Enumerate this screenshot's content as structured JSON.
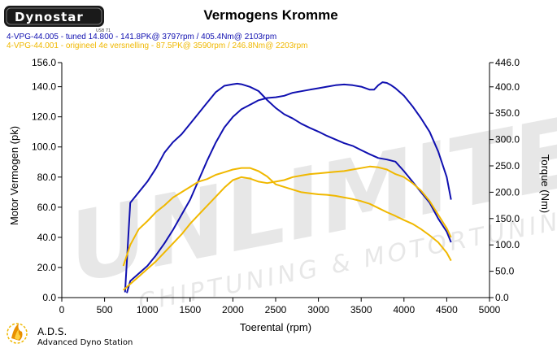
{
  "brand": {
    "logo_text": "Dynostar",
    "logo_subtext": "USB 71",
    "footer_title": "A.D.S.",
    "footer_subtitle": "Advanced Dyno Station",
    "watermark": "UNLIMITED",
    "watermark_sub": "CHIPTUNING & MOTORTUNING"
  },
  "chart_data": {
    "type": "line",
    "title": "Vermogens Kromme",
    "xlabel": "Toerental (rpm)",
    "ylabel": "Motor Vermogen (pk)",
    "y2label": "Torque (Nm)",
    "xlim": [
      0,
      5000
    ],
    "ylim": [
      0,
      156
    ],
    "y2lim": [
      0,
      446
    ],
    "x_ticks": [
      "0",
      "500",
      "1000",
      "1500",
      "2000",
      "2500",
      "3000",
      "3500",
      "4000",
      "4500",
      "5000"
    ],
    "y_ticks": [
      "0.0",
      "20.0",
      "40.0",
      "60.0",
      "80.0",
      "100.0",
      "120.0",
      "140.0",
      "156.0"
    ],
    "y2_ticks": [
      "0.0",
      "50.0",
      "100.0",
      "150.0",
      "200.0",
      "250.0",
      "300.0",
      "350.0",
      "400.0",
      "446.0"
    ],
    "grid": false,
    "legend_placement": "top-left",
    "legend": [
      {
        "text": "4-VPG-44.005 - tuned 14.800  - 141.8PK@ 3797rpm / 405.4Nm@ 2103rpm",
        "color": "#1010b0"
      },
      {
        "text": "4-VPG-44.001 - origineel 4e versnelling  - 87.5PK@ 3590rpm / 246.8Nm@ 2203rpm",
        "color": "#f0b800"
      }
    ],
    "series": [
      {
        "color": "#1010b0",
        "axis": "left",
        "x": [
          760,
          800,
          900,
          1000,
          1100,
          1200,
          1300,
          1400,
          1500,
          1600,
          1700,
          1800,
          1900,
          2000,
          2100,
          2200,
          2300,
          2400,
          2500,
          2600,
          2700,
          2800,
          2900,
          3000,
          3100,
          3200,
          3300,
          3400,
          3500,
          3600,
          3650,
          3700,
          3750,
          3800,
          3850,
          3900,
          4000,
          4100,
          4200,
          4300,
          4400,
          4500,
          4550
        ],
        "y": [
          3,
          11,
          16,
          21,
          28,
          36,
          45,
          55,
          65,
          78,
          91,
          103,
          113,
          120,
          125,
          128,
          131,
          132.5,
          133,
          134,
          136,
          137,
          138,
          139,
          140,
          141,
          141.5,
          141,
          140,
          138,
          138,
          141,
          143,
          142.5,
          141,
          139,
          134,
          127,
          119,
          110,
          97,
          80,
          65
        ]
      },
      {
        "color": "#1010b0",
        "axis": "right",
        "x": [
          740,
          800,
          900,
          1000,
          1100,
          1200,
          1300,
          1400,
          1500,
          1600,
          1700,
          1800,
          1900,
          2000,
          2050,
          2100,
          2200,
          2300,
          2400,
          2500,
          2600,
          2700,
          2800,
          2900,
          3000,
          3100,
          3200,
          3300,
          3400,
          3500,
          3600,
          3700,
          3800,
          3900,
          4000,
          4100,
          4200,
          4300,
          4400,
          4500,
          4550
        ],
        "y": [
          10,
          180,
          200,
          220,
          245,
          275,
          295,
          310,
          330,
          350,
          370,
          390,
          402,
          405,
          406,
          405,
          400,
          392,
          375,
          360,
          348,
          340,
          330,
          322,
          315,
          307,
          300,
          293,
          288,
          280,
          272,
          265,
          262,
          258,
          240,
          220,
          200,
          180,
          150,
          125,
          105
        ]
      },
      {
        "color": "#f0b800",
        "axis": "left",
        "x": [
          720,
          800,
          900,
          1000,
          1100,
          1200,
          1300,
          1400,
          1500,
          1600,
          1700,
          1800,
          1900,
          2000,
          2100,
          2200,
          2300,
          2400,
          2500,
          2600,
          2700,
          2800,
          2900,
          3000,
          3100,
          3200,
          3300,
          3400,
          3500,
          3600,
          3700,
          3800,
          3900,
          4000,
          4100,
          4200,
          4300,
          4400,
          4500,
          4550
        ],
        "y": [
          5,
          9,
          14,
          19,
          24,
          30,
          36,
          42,
          49,
          55,
          61,
          67,
          73,
          78,
          80,
          79,
          77,
          76,
          77,
          78,
          80,
          81,
          82,
          82.5,
          83,
          83.5,
          84,
          85,
          86,
          87,
          86.5,
          85,
          82,
          80,
          76,
          71,
          64,
          55,
          46,
          40
        ]
      },
      {
        "color": "#f0b800",
        "axis": "right",
        "x": [
          720,
          800,
          900,
          1000,
          1100,
          1200,
          1300,
          1400,
          1500,
          1600,
          1700,
          1800,
          1900,
          2000,
          2100,
          2200,
          2300,
          2400,
          2500,
          2600,
          2700,
          2800,
          2900,
          3000,
          3100,
          3200,
          3300,
          3400,
          3500,
          3600,
          3700,
          3800,
          3900,
          4000,
          4100,
          4200,
          4300,
          4400,
          4500,
          4550
        ],
        "y": [
          60,
          100,
          130,
          145,
          162,
          175,
          190,
          200,
          210,
          220,
          225,
          233,
          238,
          243,
          246,
          246,
          240,
          230,
          215,
          210,
          205,
          200,
          198,
          196,
          195,
          193,
          190,
          187,
          183,
          178,
          170,
          162,
          155,
          147,
          140,
          130,
          118,
          105,
          85,
          70
        ]
      }
    ]
  }
}
